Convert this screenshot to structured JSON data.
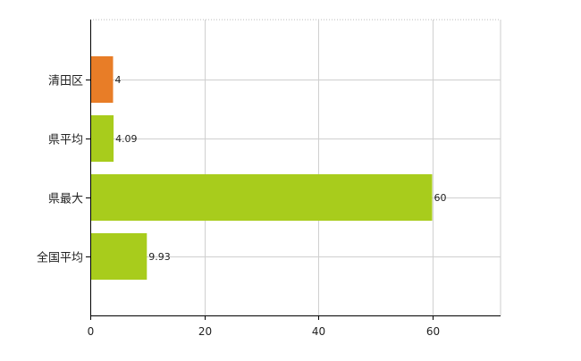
{
  "chart_data": {
    "type": "bar",
    "orientation": "horizontal",
    "categories": [
      "清田区",
      "県平均",
      "県最大",
      "全国平均"
    ],
    "values": [
      4,
      4.09,
      60,
      9.93
    ],
    "data_labels": [
      "4",
      "4.09",
      "60",
      "9.93"
    ],
    "bar_colors": [
      "#e87d27",
      "#a8cc1c",
      "#a8cc1c",
      "#a8cc1c"
    ],
    "xlim": [
      0,
      72
    ],
    "x_ticks": [
      0,
      20,
      40,
      60
    ],
    "x_tick_labels": [
      "0",
      "20",
      "40",
      "60"
    ],
    "grid": true,
    "legend": "none"
  }
}
